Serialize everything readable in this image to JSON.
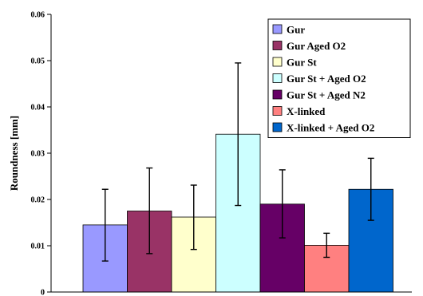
{
  "chart_data": {
    "type": "bar",
    "title": "",
    "xlabel": "",
    "ylabel": "Roundness [mm]",
    "ylim": [
      0,
      0.06
    ],
    "yticks": [
      "0",
      "0.01",
      "0.02",
      "0.03",
      "0.04",
      "0.05",
      "0.06"
    ],
    "grid": false,
    "legend_position": "top-right",
    "series": [
      {
        "name": "Gur",
        "value": 0.0145,
        "error_low": 0.0067,
        "error_high": 0.0222,
        "color": "#9999FF"
      },
      {
        "name": "Gur Aged O2",
        "value": 0.0175,
        "error_low": 0.0083,
        "error_high": 0.0268,
        "color": "#993366"
      },
      {
        "name": "Gur St",
        "value": 0.0162,
        "error_low": 0.0092,
        "error_high": 0.0231,
        "color": "#FFFFCC"
      },
      {
        "name": "Gur St + Aged O2",
        "value": 0.0341,
        "error_low": 0.0187,
        "error_high": 0.0495,
        "color": "#CCFFFF"
      },
      {
        "name": "Gur St + Aged N2",
        "value": 0.019,
        "error_low": 0.0117,
        "error_high": 0.0264,
        "color": "#660066"
      },
      {
        "name": "X-linked",
        "value": 0.0101,
        "error_low": 0.0075,
        "error_high": 0.0127,
        "color": "#FF8080"
      },
      {
        "name": "X-linked + Aged O2",
        "value": 0.0222,
        "error_low": 0.0155,
        "error_high": 0.0289,
        "color": "#0066CC"
      }
    ]
  }
}
